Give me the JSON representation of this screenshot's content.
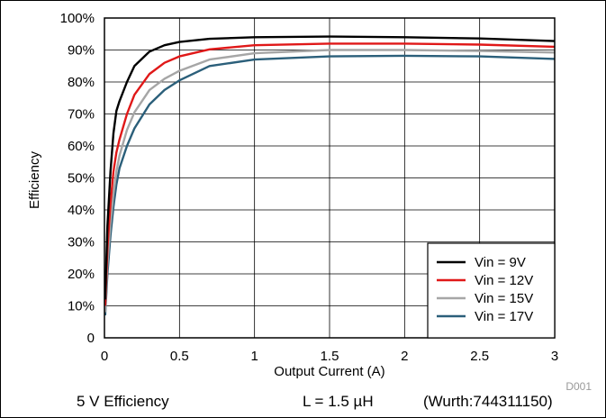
{
  "chart_data": {
    "type": "line",
    "xlabel": "Output Current (A)",
    "ylabel": "Efficiency",
    "xlim": [
      0,
      3
    ],
    "ylim": [
      0,
      100
    ],
    "x_ticks": [
      "0",
      "0.5",
      "1",
      "1.5",
      "2",
      "2.5",
      "3"
    ],
    "y_ticks": [
      "0",
      "10%",
      "20%",
      "30%",
      "40%",
      "50%",
      "60%",
      "70%",
      "80%",
      "90%",
      "100%"
    ],
    "grid": true,
    "legend_position": "bottom-right",
    "series": [
      {
        "name": "Vin = 9V",
        "color": "#000000",
        "points": [
          [
            0.005,
            12
          ],
          [
            0.02,
            35
          ],
          [
            0.04,
            52
          ],
          [
            0.06,
            64
          ],
          [
            0.08,
            71
          ],
          [
            0.1,
            74
          ],
          [
            0.15,
            80
          ],
          [
            0.2,
            85
          ],
          [
            0.3,
            89.5
          ],
          [
            0.4,
            91.5
          ],
          [
            0.5,
            92.5
          ],
          [
            0.7,
            93.5
          ],
          [
            1,
            94
          ],
          [
            1.5,
            94.2
          ],
          [
            2,
            94
          ],
          [
            2.5,
            93.6
          ],
          [
            3,
            92.8
          ]
        ]
      },
      {
        "name": "Vin = 12V",
        "color": "#e01818",
        "points": [
          [
            0.005,
            10
          ],
          [
            0.02,
            28
          ],
          [
            0.04,
            42
          ],
          [
            0.06,
            52
          ],
          [
            0.08,
            58
          ],
          [
            0.1,
            62
          ],
          [
            0.15,
            70
          ],
          [
            0.2,
            76
          ],
          [
            0.3,
            82.5
          ],
          [
            0.4,
            86
          ],
          [
            0.5,
            88
          ],
          [
            0.7,
            90.2
          ],
          [
            1,
            91.5
          ],
          [
            1.5,
            92
          ],
          [
            2,
            92
          ],
          [
            2.5,
            91.7
          ],
          [
            3,
            91
          ]
        ]
      },
      {
        "name": "Vin = 15V",
        "color": "#a6a6a6",
        "points": [
          [
            0.005,
            8
          ],
          [
            0.02,
            23
          ],
          [
            0.04,
            36
          ],
          [
            0.06,
            45
          ],
          [
            0.08,
            52
          ],
          [
            0.1,
            57
          ],
          [
            0.15,
            65
          ],
          [
            0.2,
            70.5
          ],
          [
            0.3,
            77.5
          ],
          [
            0.4,
            81
          ],
          [
            0.5,
            83.5
          ],
          [
            0.7,
            87
          ],
          [
            1,
            89
          ],
          [
            1.5,
            90
          ],
          [
            2,
            90
          ],
          [
            2.5,
            89.7
          ],
          [
            3,
            89.2
          ]
        ]
      },
      {
        "name": "Vin = 17V",
        "color": "#2b5f7a",
        "points": [
          [
            0.005,
            7
          ],
          [
            0.02,
            20
          ],
          [
            0.04,
            32
          ],
          [
            0.06,
            41
          ],
          [
            0.08,
            48
          ],
          [
            0.1,
            53
          ],
          [
            0.15,
            60
          ],
          [
            0.2,
            65.5
          ],
          [
            0.3,
            73
          ],
          [
            0.4,
            77.5
          ],
          [
            0.5,
            80.5
          ],
          [
            0.7,
            85
          ],
          [
            1,
            87
          ],
          [
            1.5,
            88
          ],
          [
            2,
            88.2
          ],
          [
            2.5,
            88
          ],
          [
            3,
            87.2
          ]
        ]
      }
    ]
  },
  "footer": {
    "title": "5 V Efficiency",
    "inductor": "L = 1.5 µH",
    "part": "(Wurth:744311150)"
  },
  "figure_code": "D001"
}
